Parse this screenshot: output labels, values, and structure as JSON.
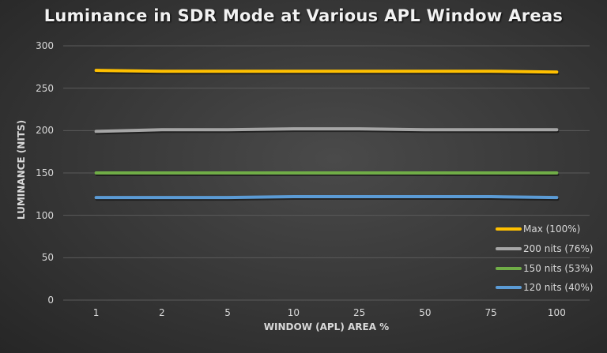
{
  "chart_data": {
    "type": "line",
    "title": "Luminance in SDR Mode at Various APL Window Areas",
    "xlabel": "WINDOW (APL) AREA %",
    "ylabel": "LUMINANCE (NITS)",
    "categories": [
      "1",
      "2",
      "5",
      "10",
      "25",
      "50",
      "75",
      "100"
    ],
    "yticks": [
      "0",
      "50",
      "100",
      "150",
      "200",
      "250",
      "300"
    ],
    "ylim": [
      0,
      300
    ],
    "grid": true,
    "legend_position": "lower right (inside plot)",
    "series": [
      {
        "name": "Max (100%)",
        "color": "#ffc000",
        "values": [
          271,
          270,
          270,
          270,
          270,
          270,
          270,
          269
        ]
      },
      {
        "name": "200 nits (76%)",
        "color": "#a6a6a6",
        "values": [
          199,
          201,
          201,
          202,
          202,
          201,
          201,
          201
        ]
      },
      {
        "name": "150 nits (53%)",
        "color": "#70ad47",
        "values": [
          150,
          150,
          150,
          150,
          150,
          150,
          150,
          150
        ]
      },
      {
        "name": "120 nits (40%)",
        "color": "#5b9bd5",
        "values": [
          121,
          121,
          121,
          122,
          122,
          122,
          122,
          121
        ]
      }
    ]
  }
}
